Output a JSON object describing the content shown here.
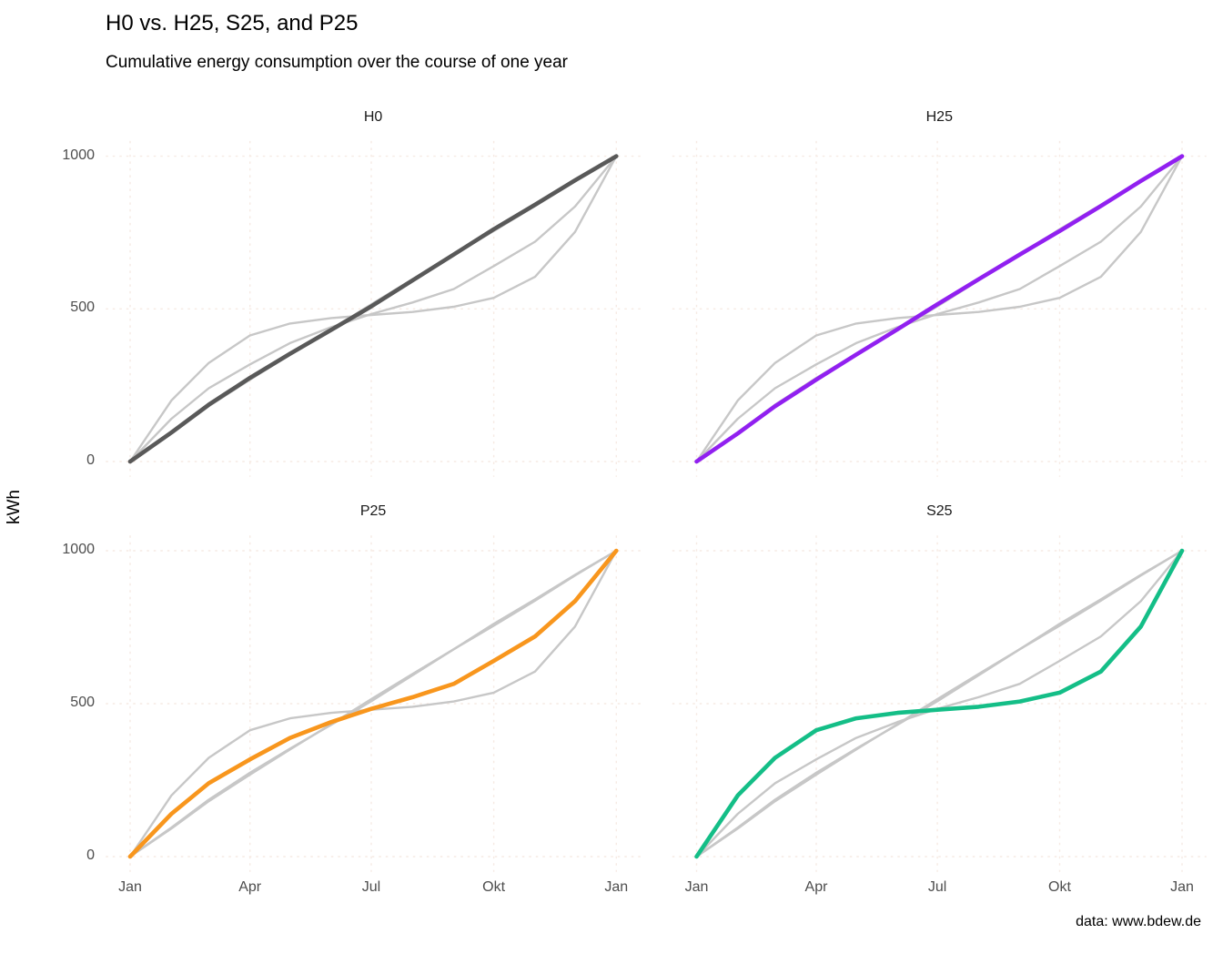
{
  "title": "H0 vs. H25, S25, and P25",
  "subtitle": "Cumulative energy consumption over the course of one year",
  "caption": "data: www.bdew.de",
  "y_axis_label": "kWh",
  "colors": {
    "H0": "#595959",
    "H25": "#9120F0",
    "P25": "#F8961D",
    "S25": "#14BE87",
    "other_series_gray": "#C7C7C7",
    "grid": "#F6EAE3",
    "axis_text": "#4D4D4D",
    "strip_text": "#1A1A1A"
  },
  "chart_data": {
    "type": "line",
    "title": "H0 vs. H25, S25, and P25",
    "subtitle": "Cumulative energy consumption over the course of one year",
    "ylabel": "kWh",
    "ylim": [
      0,
      1000
    ],
    "grid": "dotted-major",
    "legend_position": "none",
    "facets": [
      "H0",
      "H25",
      "P25",
      "S25"
    ],
    "x": {
      "tick_labels": [
        "Jan",
        "Apr",
        "Jul",
        "Okt",
        "Jan"
      ],
      "tick_days": [
        0,
        90,
        181,
        273,
        365
      ],
      "point_days": [
        0,
        31,
        59,
        90,
        120,
        151,
        181,
        212,
        243,
        273,
        304,
        334,
        365
      ],
      "point_months": [
        "Jan",
        "Feb",
        "Mar",
        "Apr",
        "Mai",
        "Jun",
        "Jul",
        "Aug",
        "Sep",
        "Okt",
        "Nov",
        "Dez",
        "Jan"
      ]
    },
    "y": {
      "ticks": [
        0,
        500,
        1000
      ],
      "tick_labels": [
        "0",
        "500",
        "1000"
      ]
    },
    "series": {
      "H0": [
        0,
        95,
        186,
        274,
        353,
        431,
        508,
        593,
        678,
        761,
        841,
        921,
        1000
      ],
      "H25": [
        0,
        92,
        181,
        268,
        350,
        433,
        515,
        597,
        678,
        755,
        837,
        919,
        1000
      ],
      "P25": [
        0,
        140,
        240,
        318,
        388,
        440,
        483,
        521,
        565,
        640,
        720,
        835,
        1000
      ],
      "S25": [
        0,
        200,
        323,
        413,
        452,
        470,
        480,
        490,
        507,
        536,
        605,
        752,
        1000
      ]
    },
    "panel_note": "each facet highlights its own profile in color; the other three profiles are drawn in light gray"
  }
}
